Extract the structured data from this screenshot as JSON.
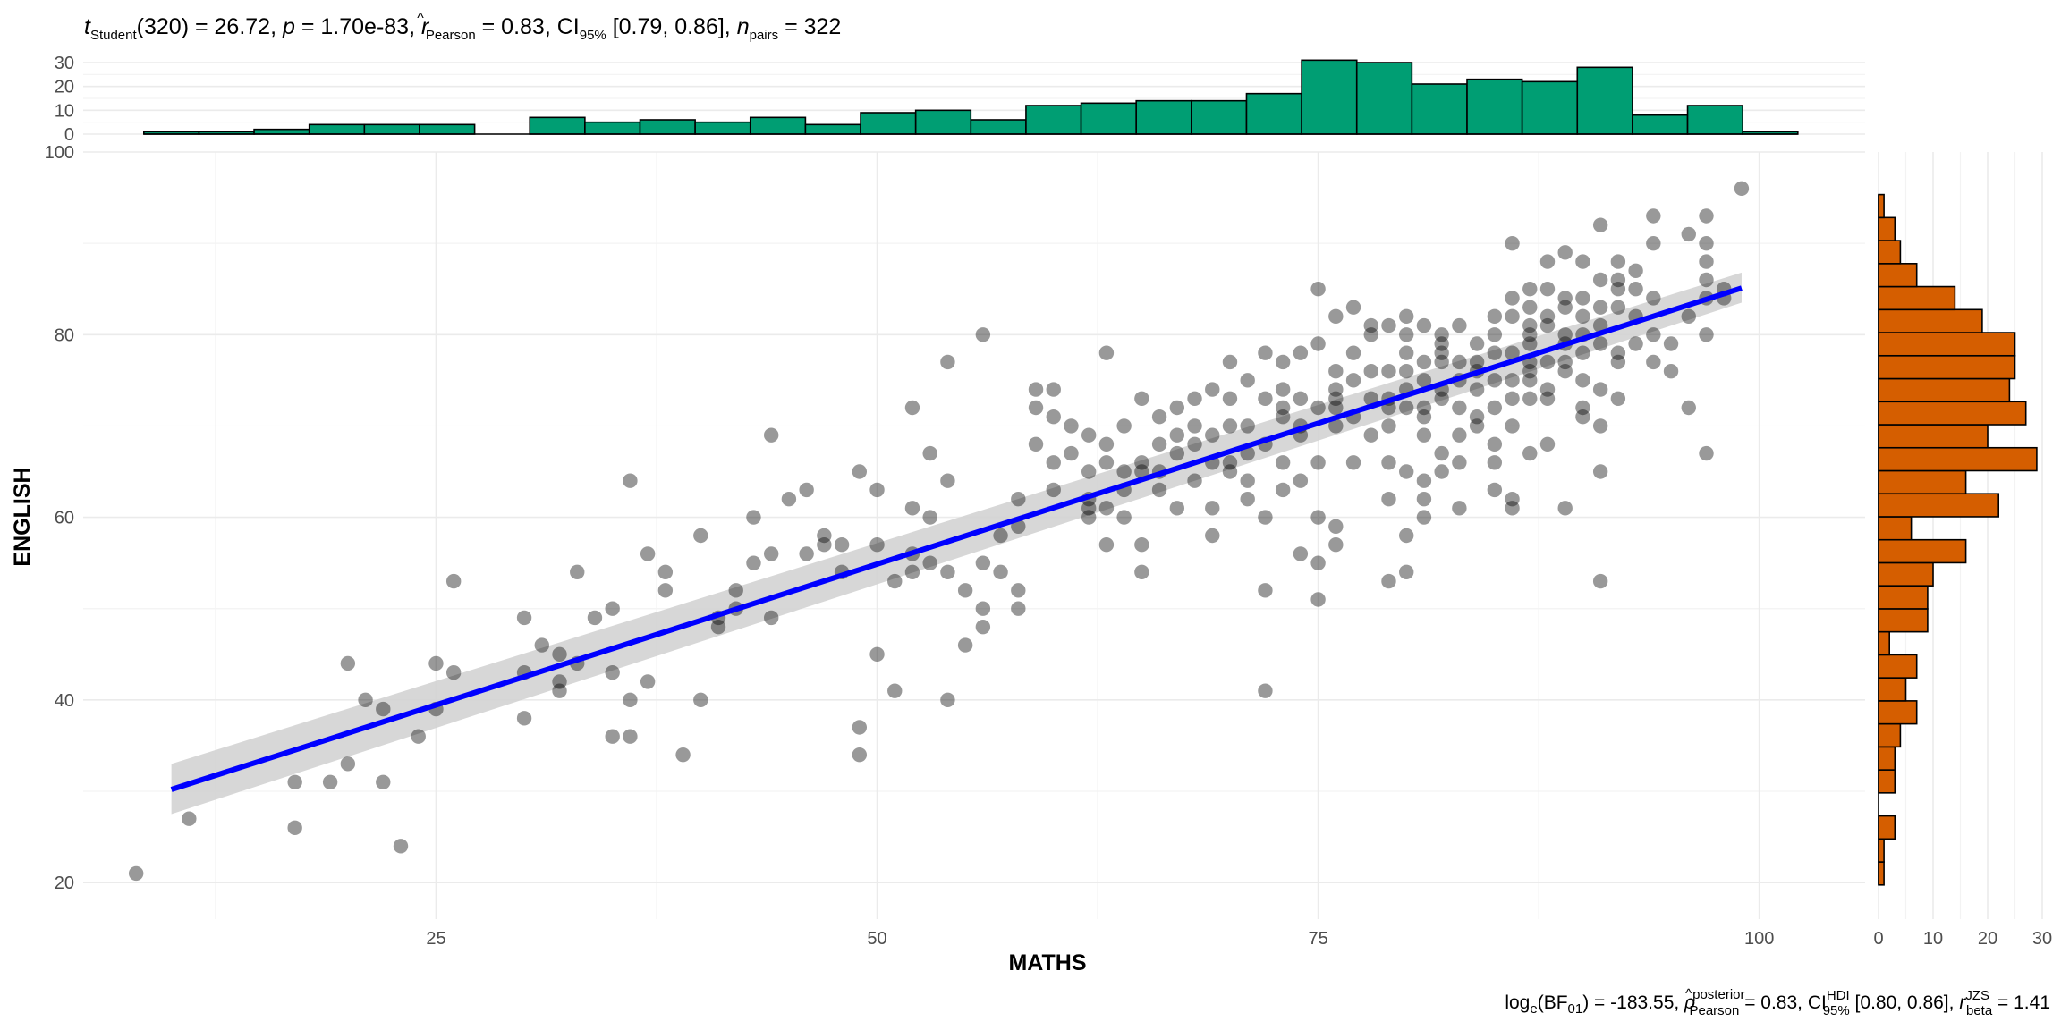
{
  "chart_data": {
    "type": "scatter",
    "title": "t_Student(320) = 26.72, p = 1.70e-83, r̂_Pearson = 0.83, CI_95% [0.79, 0.86], n_pairs = 322",
    "title_parts": {
      "t_label": "t",
      "t_sub": "Student",
      "t_rest": "(320) = 26.72, ",
      "p_label": "p",
      "p_rest": " = 1.70e-83, ",
      "r_label": "r",
      "r_hat": "^",
      "r_sub": "Pearson",
      "r_rest": " = 0.83, CI",
      "ci_sub": "95%",
      "ci_rest": " [0.79, 0.86], ",
      "n_label": "n",
      "n_sub": "pairs",
      "n_rest": " = 322"
    },
    "caption": "log_e(BF_01) = -183.55, ρ̂_Pearson^posterior = 0.83, CI_95%^HDI [0.80, 0.86], r_beta^JZS = 1.41",
    "caption_parts": {
      "a": "log",
      "a_sub": "e",
      "b": "(BF",
      "b_sub": "01",
      "c": ") = -183.55, ",
      "rho": "ρ",
      "rho_hat": "^",
      "rho_sup": "posterior",
      "rho_sub": "Pearson",
      "d": " = 0.83, CI",
      "ci_sup": "HDI",
      "ci_sub": "95%",
      "e": " [0.80, 0.86], ",
      "r": "r",
      "r_sup": "JZS",
      "r_sub": "beta",
      "f": " = 1.41"
    },
    "xlabel": "MATHS",
    "ylabel": "ENGLISH",
    "xlim": [
      5,
      106
    ],
    "ylim": [
      16,
      100
    ],
    "x_ticks": [
      25,
      50,
      75,
      100
    ],
    "y_ticks": [
      20,
      40,
      60,
      80,
      100
    ],
    "grid": true,
    "point_color": "#000000",
    "point_alpha": 0.4,
    "regression": {
      "color": "#0000ff",
      "band_color": "#d3d3d3",
      "x": [
        10,
        99
      ],
      "fit": [
        30.2,
        85.1
      ],
      "lower": [
        27.5,
        83.5
      ],
      "upper": [
        33.0,
        86.8
      ]
    },
    "points": [
      [
        8,
        21
      ],
      [
        11,
        27
      ],
      [
        17,
        26
      ],
      [
        17,
        31
      ],
      [
        19,
        31
      ],
      [
        20,
        44
      ],
      [
        20,
        33
      ],
      [
        21,
        40
      ],
      [
        22,
        39
      ],
      [
        22,
        31
      ],
      [
        23,
        24
      ],
      [
        24,
        36
      ],
      [
        25,
        39
      ],
      [
        25,
        44
      ],
      [
        26,
        43
      ],
      [
        26,
        53
      ],
      [
        30,
        38
      ],
      [
        30,
        49
      ],
      [
        30,
        43
      ],
      [
        31,
        46
      ],
      [
        32,
        42
      ],
      [
        32,
        41
      ],
      [
        32,
        45
      ],
      [
        33,
        54
      ],
      [
        34,
        49
      ],
      [
        35,
        43
      ],
      [
        35,
        50
      ],
      [
        35,
        36
      ],
      [
        36,
        36
      ],
      [
        36,
        64
      ],
      [
        36,
        40
      ],
      [
        37,
        56
      ],
      [
        37,
        42
      ],
      [
        38,
        54
      ],
      [
        39,
        34
      ],
      [
        40,
        58
      ],
      [
        40,
        40
      ],
      [
        41,
        48
      ],
      [
        41,
        49
      ],
      [
        42,
        52
      ],
      [
        43,
        55
      ],
      [
        43,
        60
      ],
      [
        44,
        56
      ],
      [
        44,
        49
      ],
      [
        44,
        69
      ],
      [
        45,
        62
      ],
      [
        46,
        63
      ],
      [
        47,
        57
      ],
      [
        47,
        58
      ],
      [
        48,
        54
      ],
      [
        48,
        57
      ],
      [
        49,
        37
      ],
      [
        49,
        34
      ],
      [
        49,
        65
      ],
      [
        50,
        45
      ],
      [
        50,
        63
      ],
      [
        50,
        57
      ],
      [
        51,
        53
      ],
      [
        51,
        41
      ],
      [
        52,
        54
      ],
      [
        52,
        72
      ],
      [
        52,
        61
      ],
      [
        52,
        56
      ],
      [
        53,
        67
      ],
      [
        53,
        55
      ],
      [
        54,
        40
      ],
      [
        54,
        54
      ],
      [
        54,
        64
      ],
      [
        54,
        77
      ],
      [
        55,
        52
      ],
      [
        55,
        46
      ],
      [
        56,
        48
      ],
      [
        56,
        55
      ],
      [
        56,
        80
      ],
      [
        56,
        50
      ],
      [
        57,
        54
      ],
      [
        58,
        52
      ],
      [
        58,
        59
      ],
      [
        58,
        62
      ],
      [
        58,
        50
      ],
      [
        59,
        68
      ],
      [
        59,
        72
      ],
      [
        59,
        74
      ],
      [
        60,
        74
      ],
      [
        60,
        71
      ],
      [
        60,
        66
      ],
      [
        61,
        70
      ],
      [
        62,
        60
      ],
      [
        62,
        61
      ],
      [
        62,
        62
      ],
      [
        62,
        65
      ],
      [
        62,
        69
      ],
      [
        63,
        66
      ],
      [
        63,
        61
      ],
      [
        63,
        57
      ],
      [
        63,
        68
      ],
      [
        63,
        78
      ],
      [
        64,
        65
      ],
      [
        64,
        63
      ],
      [
        64,
        60
      ],
      [
        65,
        73
      ],
      [
        65,
        57
      ],
      [
        65,
        54
      ],
      [
        65,
        65
      ],
      [
        65,
        66
      ],
      [
        66,
        71
      ],
      [
        66,
        65
      ],
      [
        66,
        63
      ],
      [
        67,
        61
      ],
      [
        67,
        69
      ],
      [
        67,
        67
      ],
      [
        68,
        68
      ],
      [
        68,
        73
      ],
      [
        68,
        70
      ],
      [
        69,
        69
      ],
      [
        69,
        74
      ],
      [
        69,
        61
      ],
      [
        69,
        58
      ],
      [
        70,
        65
      ],
      [
        70,
        73
      ],
      [
        70,
        77
      ],
      [
        70,
        66
      ],
      [
        71,
        70
      ],
      [
        71,
        67
      ],
      [
        71,
        64
      ],
      [
        71,
        75
      ],
      [
        71,
        62
      ],
      [
        72,
        73
      ],
      [
        72,
        60
      ],
      [
        72,
        41
      ],
      [
        72,
        52
      ],
      [
        72,
        78
      ],
      [
        73,
        66
      ],
      [
        73,
        72
      ],
      [
        73,
        71
      ],
      [
        73,
        63
      ],
      [
        73,
        77
      ],
      [
        74,
        73
      ],
      [
        74,
        78
      ],
      [
        74,
        69
      ],
      [
        74,
        64
      ],
      [
        74,
        56
      ],
      [
        75,
        72
      ],
      [
        75,
        66
      ],
      [
        75,
        60
      ],
      [
        75,
        79
      ],
      [
        75,
        55
      ],
      [
        75,
        51
      ],
      [
        75,
        85
      ],
      [
        76,
        73
      ],
      [
        76,
        70
      ],
      [
        76,
        76
      ],
      [
        76,
        74
      ],
      [
        76,
        59
      ],
      [
        76,
        57
      ],
      [
        76,
        82
      ],
      [
        77,
        66
      ],
      [
        77,
        71
      ],
      [
        77,
        78
      ],
      [
        77,
        83
      ],
      [
        78,
        81
      ],
      [
        78,
        76
      ],
      [
        78,
        69
      ],
      [
        78,
        80
      ],
      [
        79,
        73
      ],
      [
        79,
        53
      ],
      [
        79,
        66
      ],
      [
        79,
        72
      ],
      [
        79,
        81
      ],
      [
        79,
        76
      ],
      [
        79,
        62
      ],
      [
        80,
        80
      ],
      [
        80,
        74
      ],
      [
        80,
        76
      ],
      [
        80,
        65
      ],
      [
        80,
        78
      ],
      [
        80,
        58
      ],
      [
        80,
        54
      ],
      [
        80,
        82
      ],
      [
        81,
        72
      ],
      [
        81,
        69
      ],
      [
        81,
        64
      ],
      [
        81,
        81
      ],
      [
        81,
        77
      ],
      [
        81,
        71
      ],
      [
        81,
        60
      ],
      [
        81,
        62
      ],
      [
        81,
        75
      ],
      [
        82,
        79
      ],
      [
        82,
        73
      ],
      [
        82,
        78
      ],
      [
        82,
        74
      ],
      [
        82,
        67
      ],
      [
        82,
        65
      ],
      [
        82,
        80
      ],
      [
        82,
        77
      ],
      [
        83,
        75
      ],
      [
        83,
        81
      ],
      [
        83,
        69
      ],
      [
        83,
        66
      ],
      [
        83,
        72
      ],
      [
        83,
        77
      ],
      [
        83,
        61
      ],
      [
        84,
        76
      ],
      [
        84,
        79
      ],
      [
        84,
        71
      ],
      [
        84,
        77
      ],
      [
        84,
        70
      ],
      [
        84,
        74
      ],
      [
        85,
        82
      ],
      [
        85,
        75
      ],
      [
        85,
        68
      ],
      [
        85,
        66
      ],
      [
        85,
        78
      ],
      [
        85,
        63
      ],
      [
        85,
        72
      ],
      [
        85,
        80
      ],
      [
        86,
        73
      ],
      [
        86,
        75
      ],
      [
        86,
        78
      ],
      [
        86,
        62
      ],
      [
        86,
        82
      ],
      [
        86,
        61
      ],
      [
        86,
        90
      ],
      [
        86,
        84
      ],
      [
        86,
        70
      ],
      [
        87,
        77
      ],
      [
        87,
        85
      ],
      [
        87,
        79
      ],
      [
        87,
        81
      ],
      [
        87,
        75
      ],
      [
        87,
        76
      ],
      [
        87,
        83
      ],
      [
        87,
        73
      ],
      [
        87,
        67
      ],
      [
        87,
        80
      ],
      [
        88,
        82
      ],
      [
        88,
        81
      ],
      [
        88,
        85
      ],
      [
        88,
        74
      ],
      [
        88,
        77
      ],
      [
        88,
        68
      ],
      [
        88,
        73
      ],
      [
        88,
        88
      ],
      [
        89,
        79
      ],
      [
        89,
        61
      ],
      [
        89,
        84
      ],
      [
        89,
        76
      ],
      [
        89,
        89
      ],
      [
        89,
        83
      ],
      [
        89,
        77
      ],
      [
        89,
        80
      ],
      [
        90,
        82
      ],
      [
        90,
        75
      ],
      [
        90,
        80
      ],
      [
        90,
        78
      ],
      [
        90,
        84
      ],
      [
        90,
        88
      ],
      [
        90,
        72
      ],
      [
        90,
        71
      ],
      [
        91,
        86
      ],
      [
        91,
        83
      ],
      [
        91,
        79
      ],
      [
        91,
        70
      ],
      [
        91,
        65
      ],
      [
        91,
        53
      ],
      [
        91,
        92
      ],
      [
        91,
        74
      ],
      [
        91,
        81
      ],
      [
        92,
        85
      ],
      [
        92,
        88
      ],
      [
        92,
        78
      ],
      [
        92,
        86
      ],
      [
        92,
        73
      ],
      [
        92,
        83
      ],
      [
        92,
        77
      ],
      [
        93,
        87
      ],
      [
        93,
        82
      ],
      [
        93,
        79
      ],
      [
        93,
        85
      ],
      [
        94,
        77
      ],
      [
        94,
        80
      ],
      [
        94,
        90
      ],
      [
        94,
        93
      ],
      [
        94,
        84
      ],
      [
        95,
        79
      ],
      [
        95,
        76
      ],
      [
        96,
        72
      ],
      [
        96,
        82
      ],
      [
        96,
        91
      ],
      [
        97,
        93
      ],
      [
        97,
        84
      ],
      [
        97,
        86
      ],
      [
        97,
        88
      ],
      [
        97,
        80
      ],
      [
        97,
        67
      ],
      [
        97,
        90
      ],
      [
        98,
        84
      ],
      [
        98,
        85
      ],
      [
        99,
        96
      ],
      [
        33,
        44
      ],
      [
        38,
        52
      ],
      [
        42,
        50
      ],
      [
        46,
        56
      ],
      [
        53,
        60
      ],
      [
        57,
        58
      ],
      [
        60,
        63
      ],
      [
        61,
        67
      ],
      [
        64,
        70
      ],
      [
        66,
        68
      ],
      [
        67,
        72
      ],
      [
        68,
        64
      ],
      [
        69,
        66
      ],
      [
        70,
        70
      ],
      [
        72,
        68
      ],
      [
        73,
        74
      ],
      [
        74,
        70
      ],
      [
        76,
        72
      ],
      [
        77,
        75
      ],
      [
        78,
        73
      ],
      [
        79,
        70
      ],
      [
        80,
        72
      ]
    ],
    "top_histogram": {
      "color": "#009e73",
      "binwidth": 3.125,
      "start": 8.4375,
      "counts": [
        1,
        1,
        2,
        4,
        4,
        4,
        0,
        7,
        5,
        6,
        5,
        7,
        4,
        9,
        10,
        6,
        12,
        13,
        14,
        14,
        17,
        31,
        30,
        21,
        23,
        22,
        28,
        8,
        12,
        1
      ],
      "ylim": [
        0,
        33
      ],
      "y_ticks": [
        0,
        10,
        20,
        30
      ]
    },
    "right_histogram": {
      "color": "#d55e00",
      "binwidth": 2.52,
      "start": 19.74,
      "counts": [
        1,
        1,
        3,
        0,
        3,
        3,
        4,
        7,
        5,
        7,
        2,
        9,
        9,
        10,
        16,
        6,
        22,
        16,
        29,
        20,
        27,
        24,
        25,
        25,
        19,
        14,
        7,
        4,
        3,
        1
      ],
      "xlim": [
        0,
        30
      ],
      "x_ticks": [
        0,
        10,
        20,
        30
      ]
    }
  }
}
